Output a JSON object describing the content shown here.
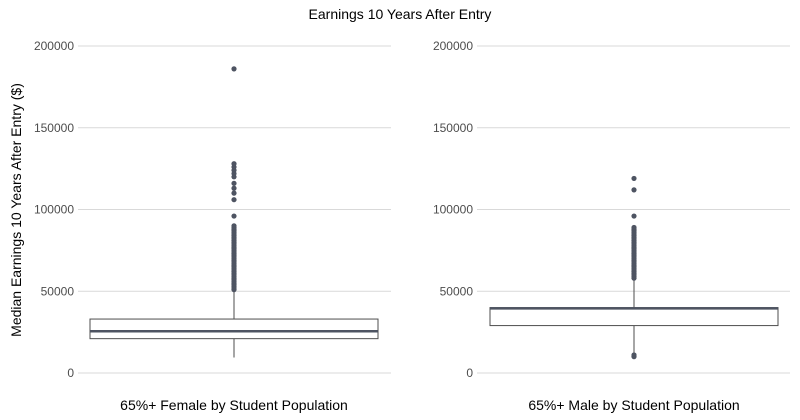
{
  "title": "Earnings 10 Years After Entry",
  "colors": {
    "box_stroke": "#4d4d4d",
    "median": "#4e5462",
    "outlier": "#4e5462",
    "grid": "#d9d9d9",
    "axis_text": "#4d4d4d",
    "label_text": "#000000"
  },
  "chart_data": {
    "type": "box",
    "title": "Earnings 10 Years After Entry",
    "ylabel": "Median Earnings 10 Years After Entry ($)",
    "ylim": [
      0,
      200000
    ],
    "yticks": [
      0,
      50000,
      100000,
      150000,
      200000
    ],
    "ytick_labels": [
      "0",
      "50000",
      "100000",
      "150000",
      "200000"
    ],
    "grid": true,
    "panels": [
      {
        "category": "65%+ Female by Student Population",
        "stats": {
          "min": 9500,
          "q1": 21000,
          "median": 25500,
          "q3": 33000,
          "max": 51000
        },
        "outliers": [
          51000,
          52000,
          53000,
          54000,
          55000,
          56000,
          57000,
          58000,
          59000,
          60000,
          61000,
          62000,
          63000,
          64000,
          65000,
          66000,
          67000,
          68000,
          69000,
          70000,
          71000,
          72000,
          73000,
          74000,
          75000,
          76000,
          77000,
          78000,
          79000,
          80000,
          81000,
          82000,
          83000,
          84000,
          85000,
          86000,
          87000,
          88000,
          89000,
          90000,
          96000,
          106000,
          110000,
          113000,
          116000,
          120000,
          122000,
          124000,
          126000,
          128000,
          186000
        ]
      },
      {
        "category": "65%+ Male by Student Population",
        "stats": {
          "min": 11000,
          "q1": 29000,
          "median": 39500,
          "q3": 40000,
          "max": 60000
        },
        "outliers": [
          10000,
          11000,
          58000,
          59000,
          60000,
          61000,
          62000,
          63000,
          64000,
          65000,
          66000,
          67000,
          68000,
          69000,
          70000,
          71000,
          72000,
          73000,
          74000,
          75000,
          76000,
          77000,
          78000,
          79000,
          80000,
          81000,
          82000,
          83000,
          84000,
          85000,
          86000,
          87000,
          88000,
          89000,
          96000,
          112000,
          119000
        ]
      }
    ]
  }
}
